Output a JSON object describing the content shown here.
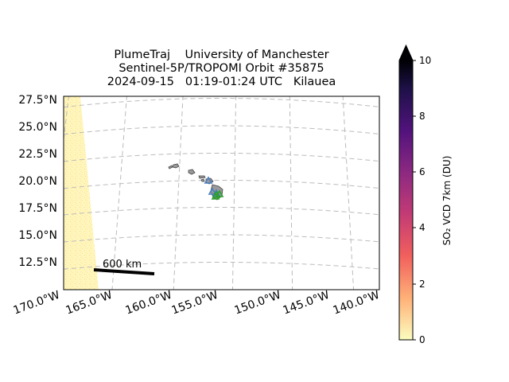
{
  "title": {
    "line1": "PlumeTraj    University of Manchester",
    "line2": "Sentinel-5P/TROPOMI Orbit #35875",
    "line3": "2024-09-15   01:19-01:24 UTC   Kilauea"
  },
  "map": {
    "lat_labels": [
      "27.5°N",
      "25.0°N",
      "22.5°N",
      "20.0°N",
      "17.5°N",
      "15.0°N",
      "12.5°N"
    ],
    "lon_labels": [
      "170.0°W",
      "165.0°W",
      "160.0°W",
      "155.0°W",
      "150.0°W",
      "145.0°W",
      "140.0°W"
    ],
    "scale_bar_label": "600 km",
    "gridlines": true,
    "gridline_style": "dashed",
    "volcano": "Kilauea",
    "swath_color": "#fff5b8",
    "island_fill": "#9a9a9a",
    "marker_color_blue": "#4a7fc1",
    "marker_color_green": "#2ca02c"
  },
  "colorbar": {
    "label": "SO₂ VCD 7km (DU)",
    "ticks": [
      "0",
      "2",
      "4",
      "6",
      "8",
      "10"
    ],
    "min": 0,
    "max": 10,
    "extend": "max",
    "colormap": "magma_r"
  }
}
